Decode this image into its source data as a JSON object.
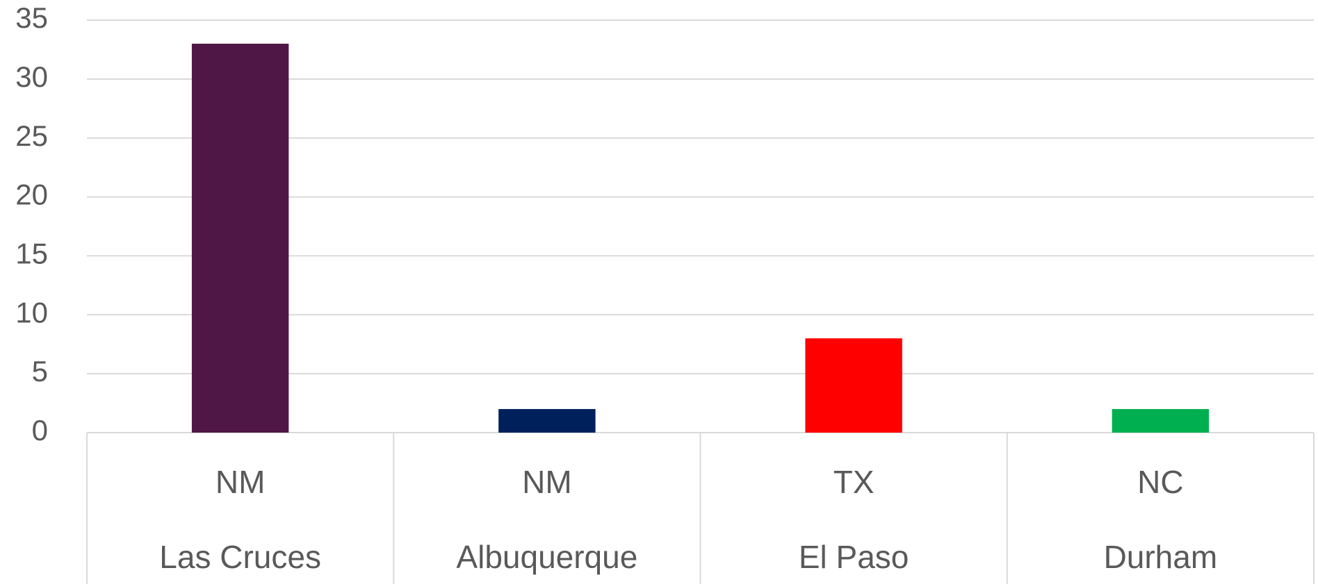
{
  "chart_data": {
    "type": "bar",
    "categories": [
      "Las Cruces",
      "Albuquerque",
      "El Paso",
      "Durham"
    ],
    "category_groups": [
      "NM",
      "NM",
      "TX",
      "NC"
    ],
    "values": [
      33,
      2,
      8,
      2
    ],
    "colors": [
      "#4f1745",
      "#00205b",
      "#ff0000",
      "#00b050"
    ],
    "ylim": [
      0,
      35
    ],
    "yticks": [
      0,
      5,
      10,
      15,
      20,
      25,
      30,
      35
    ],
    "grid": true
  }
}
